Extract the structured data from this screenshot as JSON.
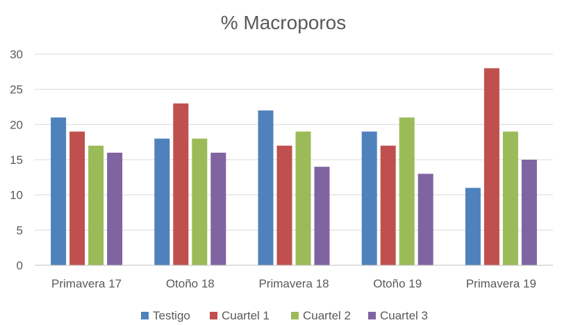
{
  "chart_data": {
    "type": "bar",
    "title": "% Macroporos",
    "categories": [
      "Primavera 17",
      "Otoño 18",
      "Primavera 18",
      "Otoño 19",
      "Primavera 19"
    ],
    "series": [
      {
        "name": "Testigo",
        "color": "#4f81bd",
        "values": [
          21,
          18,
          22,
          19,
          11
        ]
      },
      {
        "name": "Cuartel 1",
        "color": "#c0504d",
        "values": [
          19,
          23,
          17,
          17,
          28
        ]
      },
      {
        "name": "Cuartel 2",
        "color": "#9bbb59",
        "values": [
          17,
          18,
          19,
          21,
          19
        ]
      },
      {
        "name": "Cuartel 3",
        "color": "#8064a2",
        "values": [
          16,
          16,
          14,
          13,
          15
        ]
      }
    ],
    "ylim": [
      0,
      30
    ],
    "yticks": [
      0,
      5,
      10,
      15,
      20,
      25,
      30
    ],
    "grid": true,
    "legend_position": "bottom"
  }
}
